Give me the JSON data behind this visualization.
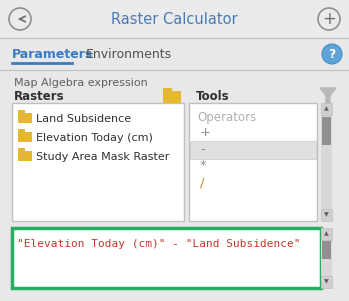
{
  "title": "Raster Calculator",
  "tab1": "Parameters",
  "tab2": "Environments",
  "map_algebra_label": "Map Algebra expression",
  "rasters_label": "Rasters",
  "tools_label": "Tools",
  "operators_label": "Operators",
  "raster_items": [
    "Land Subsidence",
    "Elevation Today (cm)",
    "Study Area Mask Raster"
  ],
  "operators": [
    "+",
    "-",
    "*",
    "/"
  ],
  "expression": "\"Elevation Today (cm)\" - \"Land Subsidence\"",
  "bg_color": "#e8e8e8",
  "white": "#ffffff",
  "title_color": "#4a7ab5",
  "tab_active_color": "#3b7bbf",
  "tab_text_color": "#505050",
  "label_color": "#303030",
  "section_label_color": "#606060",
  "folder_color": "#e6b830",
  "operator_color": "#909090",
  "selected_operator_bg": "#e0e0e0",
  "expression_color": "#c0392b",
  "expression_border": "#27ae60",
  "scrollbar_track": "#d8d8d8",
  "scrollbar_thumb": "#909090",
  "operators_label_color": "#b0b0b0",
  "help_circle_fill": "#5ba3d9",
  "help_circle_edge": "#4a90c0",
  "slash_color": "#d4882a",
  "header_bg": "#ebebeb",
  "border_color": "#c0c0c0",
  "circle_edge_color": "#909090",
  "arrow_color": "#707070"
}
